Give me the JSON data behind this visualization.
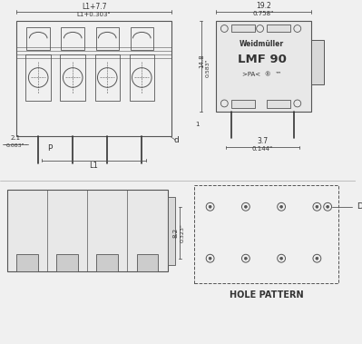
{
  "bg_color": "#f0f0f0",
  "line_color": "#555555",
  "dark_line": "#333333",
  "text_color": "#333333",
  "dim_color": "#555555",
  "brand": "Weidmüller",
  "model": "LMF 90",
  "certifications": ">PA<  ®  ™",
  "dim_top_label1": "L1+7.7",
  "dim_top_label2": "L1+0.303\"",
  "dim_width_label1": "19.2",
  "dim_width_label2": "0.758\"",
  "dim_height_label1": "14.8",
  "dim_height_label2": "0.583\"",
  "dim_pin_label1": "3.7",
  "dim_pin_label2": "0.144\"",
  "dim_left_label1": "2.1",
  "dim_left_label2": "0.083\"",
  "dim_p": "P",
  "dim_d": "d",
  "dim_l1": "L1",
  "dim_hole1": "8.2",
  "dim_hole2": "0.323\"",
  "hole_pattern_label": "HOLE PATTERN",
  "dim_D": "D",
  "separator_color": "#aaaaaa"
}
